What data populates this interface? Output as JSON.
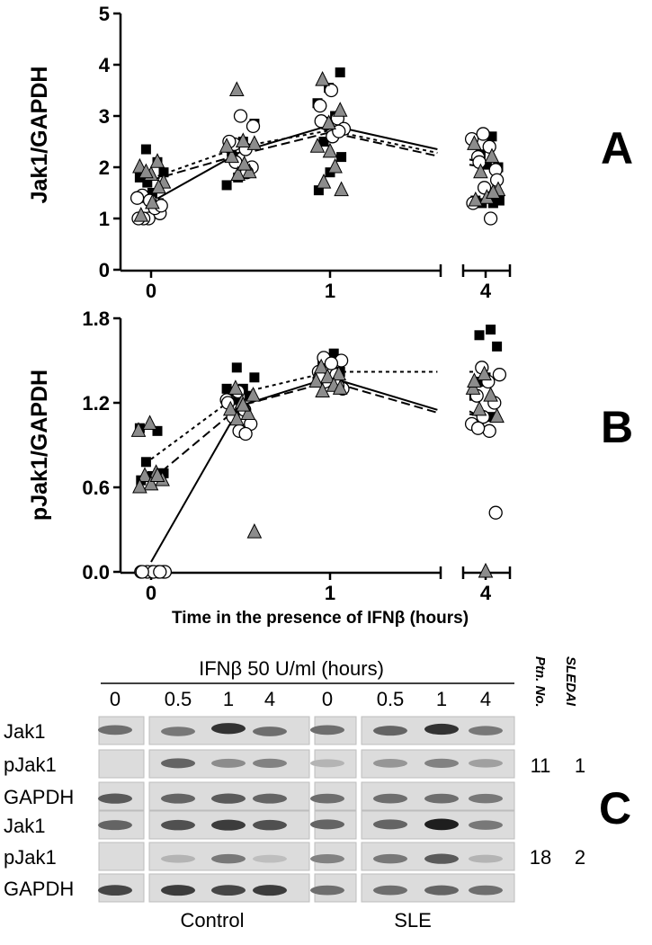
{
  "panels": {
    "A": "A",
    "B": "B",
    "C": "C"
  },
  "chart_data": [
    {
      "type": "scatter",
      "panel": "A",
      "title": "",
      "xlabel": "",
      "ylabel": "Jak1/GAPDH",
      "ylim": [
        0,
        5
      ],
      "yticks": [
        "0",
        "1",
        "2",
        "3",
        "4",
        "5"
      ],
      "xticks": [
        "0",
        "1",
        "4"
      ],
      "x_axis_break": "between 1 and 4",
      "series": [
        {
          "marker": "filled-square",
          "points": [
            {
              "x": 0,
              "y": 1.8
            },
            {
              "x": 0,
              "y": 2.1
            },
            {
              "x": 0,
              "y": 2.35
            },
            {
              "x": 0,
              "y": 1.9
            },
            {
              "x": 0,
              "y": 1.5
            },
            {
              "x": 0,
              "y": 1.4
            },
            {
              "x": 0,
              "y": 1.3
            },
            {
              "x": 0,
              "y": 1.7
            },
            {
              "x": 0.5,
              "y": 2.85
            },
            {
              "x": 0.5,
              "y": 2.5
            },
            {
              "x": 0.5,
              "y": 2.3
            },
            {
              "x": 0.5,
              "y": 2.0
            },
            {
              "x": 0.5,
              "y": 1.8
            },
            {
              "x": 0.5,
              "y": 1.65
            },
            {
              "x": 0.5,
              "y": 1.9
            },
            {
              "x": 0.5,
              "y": 2.2
            },
            {
              "x": 1,
              "y": 3.85
            },
            {
              "x": 1,
              "y": 3.55
            },
            {
              "x": 1,
              "y": 3.25
            },
            {
              "x": 1,
              "y": 3.0
            },
            {
              "x": 1,
              "y": 2.5
            },
            {
              "x": 1,
              "y": 2.2
            },
            {
              "x": 1,
              "y": 1.9
            },
            {
              "x": 1,
              "y": 1.55
            },
            {
              "x": 4,
              "y": 2.6
            },
            {
              "x": 4,
              "y": 2.25
            },
            {
              "x": 4,
              "y": 2.0
            },
            {
              "x": 4,
              "y": 2.05
            },
            {
              "x": 4,
              "y": 1.35
            },
            {
              "x": 4,
              "y": 1.3
            },
            {
              "x": 4,
              "y": 1.3
            },
            {
              "x": 4,
              "y": 1.35
            }
          ]
        },
        {
          "marker": "open-circle",
          "points": [
            {
              "x": 0,
              "y": 1.3
            },
            {
              "x": 0,
              "y": 1.45
            },
            {
              "x": 0,
              "y": 1.1
            },
            {
              "x": 0,
              "y": 1.0
            },
            {
              "x": 0,
              "y": 1.4
            },
            {
              "x": 0,
              "y": 1.2
            },
            {
              "x": 0,
              "y": 1.0
            },
            {
              "x": 0,
              "y": 1.25
            },
            {
              "x": 0,
              "y": 1.35
            },
            {
              "x": 0,
              "y": 1.0
            },
            {
              "x": 0.5,
              "y": 2.35
            },
            {
              "x": 0.5,
              "y": 2.45
            },
            {
              "x": 0.5,
              "y": 2.0
            },
            {
              "x": 0.5,
              "y": 3.0
            },
            {
              "x": 0.5,
              "y": 2.5
            },
            {
              "x": 0.5,
              "y": 1.9
            },
            {
              "x": 0.5,
              "y": 2.1
            },
            {
              "x": 0.5,
              "y": 2.8
            },
            {
              "x": 1,
              "y": 3.5
            },
            {
              "x": 1,
              "y": 3.2
            },
            {
              "x": 1,
              "y": 2.95
            },
            {
              "x": 1,
              "y": 2.85
            },
            {
              "x": 1,
              "y": 2.75
            },
            {
              "x": 1,
              "y": 2.6
            },
            {
              "x": 1,
              "y": 2.9
            },
            {
              "x": 1,
              "y": 2.7
            },
            {
              "x": 4,
              "y": 2.65
            },
            {
              "x": 4,
              "y": 2.55
            },
            {
              "x": 4,
              "y": 2.4
            },
            {
              "x": 4,
              "y": 2.2
            },
            {
              "x": 4,
              "y": 1.95
            },
            {
              "x": 4,
              "y": 1.6
            },
            {
              "x": 4,
              "y": 1.3
            },
            {
              "x": 4,
              "y": 1.0
            },
            {
              "x": 4,
              "y": 2.1
            },
            {
              "x": 4,
              "y": 1.75
            }
          ]
        },
        {
          "marker": "grey-triangle",
          "points": [
            {
              "x": 0,
              "y": 1.85
            },
            {
              "x": 0,
              "y": 2.0
            },
            {
              "x": 0,
              "y": 2.1
            },
            {
              "x": 0,
              "y": 1.9
            },
            {
              "x": 0,
              "y": 1.7
            },
            {
              "x": 0,
              "y": 1.3
            },
            {
              "x": 0,
              "y": 1.05
            },
            {
              "x": 0,
              "y": 1.6
            },
            {
              "x": 0.5,
              "y": 3.5
            },
            {
              "x": 0.5,
              "y": 2.45
            },
            {
              "x": 0.5,
              "y": 2.5
            },
            {
              "x": 0.5,
              "y": 2.2
            },
            {
              "x": 0.5,
              "y": 1.9
            },
            {
              "x": 0.5,
              "y": 1.85
            },
            {
              "x": 0.5,
              "y": 2.4
            },
            {
              "x": 0.5,
              "y": 2.05
            },
            {
              "x": 1,
              "y": 3.7
            },
            {
              "x": 1,
              "y": 3.1
            },
            {
              "x": 1,
              "y": 2.85
            },
            {
              "x": 1,
              "y": 2.4
            },
            {
              "x": 1,
              "y": 2.0
            },
            {
              "x": 1,
              "y": 1.7
            },
            {
              "x": 1,
              "y": 1.55
            },
            {
              "x": 1,
              "y": 2.3
            },
            {
              "x": 4,
              "y": 2.45
            },
            {
              "x": 4,
              "y": 2.2
            },
            {
              "x": 4,
              "y": 1.9
            },
            {
              "x": 4,
              "y": 1.55
            },
            {
              "x": 4,
              "y": 1.4
            },
            {
              "x": 4,
              "y": 1.35
            },
            {
              "x": 4,
              "y": 1.5
            }
          ]
        }
      ],
      "lines": [
        {
          "style": "solid",
          "points": [
            {
              "x": 0,
              "y": 1.32
            },
            {
              "x": 0.5,
              "y": 2.3
            },
            {
              "x": 1,
              "y": 2.82
            },
            {
              "x": 1.6,
              "y": 2.35
            }
          ]
        },
        {
          "style": "dashed",
          "points": [
            {
              "x": 0,
              "y": 1.75
            },
            {
              "x": 0.5,
              "y": 2.25
            },
            {
              "x": 1,
              "y": 2.68
            },
            {
              "x": 1.6,
              "y": 2.22
            }
          ]
        },
        {
          "style": "dotted",
          "points": [
            {
              "x": 0,
              "y": 1.78
            },
            {
              "x": 0.5,
              "y": 2.4
            },
            {
              "x": 1,
              "y": 2.72
            },
            {
              "x": 1.6,
              "y": 2.28
            }
          ]
        },
        {
          "style": "solid",
          "points": [
            {
              "x": 3.85,
              "y": 2.15
            },
            {
              "x": 4,
              "y": 2.08
            }
          ]
        },
        {
          "style": "dashed",
          "points": [
            {
              "x": 3.85,
              "y": 2.05
            },
            {
              "x": 4,
              "y": 2.0
            }
          ]
        }
      ]
    },
    {
      "type": "scatter",
      "panel": "B",
      "title": "",
      "xlabel": "Time in the presence of IFNβ (hours)",
      "ylabel": "pJak1/GAPDH",
      "ylim": [
        0,
        1.8
      ],
      "yticks": [
        "0.0",
        "0.6",
        "1.2",
        "1.8"
      ],
      "xticks": [
        "0",
        "1",
        "4"
      ],
      "x_axis_break": "between 1 and 4",
      "series": [
        {
          "marker": "filled-square",
          "points": [
            {
              "x": 0,
              "y": 1.02
            },
            {
              "x": 0,
              "y": 1.0
            },
            {
              "x": 0,
              "y": 0.78
            },
            {
              "x": 0,
              "y": 0.7
            },
            {
              "x": 0,
              "y": 0.68
            },
            {
              "x": 0,
              "y": 0.65
            },
            {
              "x": 0,
              "y": 0.7
            },
            {
              "x": 0.5,
              "y": 1.45
            },
            {
              "x": 0.5,
              "y": 1.38
            },
            {
              "x": 0.5,
              "y": 1.3
            },
            {
              "x": 0.5,
              "y": 1.28
            },
            {
              "x": 0.5,
              "y": 1.25
            },
            {
              "x": 0.5,
              "y": 1.22
            },
            {
              "x": 0.5,
              "y": 1.3
            },
            {
              "x": 1,
              "y": 1.55
            },
            {
              "x": 1,
              "y": 1.48
            },
            {
              "x": 1,
              "y": 1.42
            },
            {
              "x": 1,
              "y": 1.38
            },
            {
              "x": 1,
              "y": 1.35
            },
            {
              "x": 4,
              "y": 1.72
            },
            {
              "x": 4,
              "y": 1.68
            },
            {
              "x": 4,
              "y": 1.6
            },
            {
              "x": 4,
              "y": 1.38
            },
            {
              "x": 4,
              "y": 1.25
            },
            {
              "x": 4,
              "y": 1.1
            },
            {
              "x": 4,
              "y": 1.35
            }
          ]
        },
        {
          "marker": "open-circle",
          "points": [
            {
              "x": 0,
              "y": 0.0
            },
            {
              "x": 0,
              "y": 0.0
            },
            {
              "x": 0,
              "y": 0.0
            },
            {
              "x": 0,
              "y": 0.0
            },
            {
              "x": 0,
              "y": 0.0
            },
            {
              "x": 0,
              "y": 0.0
            },
            {
              "x": 0,
              "y": 0.0
            },
            {
              "x": 0,
              "y": 0.0
            },
            {
              "x": 0,
              "y": 0.0
            },
            {
              "x": 0.5,
              "y": 1.28
            },
            {
              "x": 0.5,
              "y": 1.22
            },
            {
              "x": 0.5,
              "y": 1.15
            },
            {
              "x": 0.5,
              "y": 1.1
            },
            {
              "x": 0.5,
              "y": 1.05
            },
            {
              "x": 0.5,
              "y": 1.0
            },
            {
              "x": 0.5,
              "y": 1.2
            },
            {
              "x": 0.5,
              "y": 0.98
            },
            {
              "x": 1,
              "y": 1.52
            },
            {
              "x": 1,
              "y": 1.5
            },
            {
              "x": 1,
              "y": 1.45
            },
            {
              "x": 1,
              "y": 1.42
            },
            {
              "x": 1,
              "y": 1.4
            },
            {
              "x": 1,
              "y": 1.35
            },
            {
              "x": 1,
              "y": 1.3
            },
            {
              "x": 1,
              "y": 1.48
            },
            {
              "x": 1,
              "y": 1.38
            },
            {
              "x": 1,
              "y": 1.32
            },
            {
              "x": 4,
              "y": 1.45
            },
            {
              "x": 4,
              "y": 1.4
            },
            {
              "x": 4,
              "y": 1.35
            },
            {
              "x": 4,
              "y": 1.25
            },
            {
              "x": 4,
              "y": 1.2
            },
            {
              "x": 4,
              "y": 1.1
            },
            {
              "x": 4,
              "y": 1.05
            },
            {
              "x": 4,
              "y": 1.0
            },
            {
              "x": 4,
              "y": 1.02
            },
            {
              "x": 4,
              "y": 0.42
            }
          ]
        },
        {
          "marker": "grey-triangle",
          "points": [
            {
              "x": 0,
              "y": 1.05
            },
            {
              "x": 0,
              "y": 1.0
            },
            {
              "x": 0,
              "y": 0.7
            },
            {
              "x": 0,
              "y": 0.68
            },
            {
              "x": 0,
              "y": 0.65
            },
            {
              "x": 0,
              "y": 0.62
            },
            {
              "x": 0,
              "y": 0.6
            },
            {
              "x": 0,
              "y": 0.68
            },
            {
              "x": 0.5,
              "y": 1.3
            },
            {
              "x": 0.5,
              "y": 1.25
            },
            {
              "x": 0.5,
              "y": 1.2
            },
            {
              "x": 0.5,
              "y": 1.15
            },
            {
              "x": 0.5,
              "y": 1.12
            },
            {
              "x": 0.5,
              "y": 1.08
            },
            {
              "x": 0.5,
              "y": 0.28
            },
            {
              "x": 0.5,
              "y": 1.18
            },
            {
              "x": 1,
              "y": 1.45
            },
            {
              "x": 1,
              "y": 1.4
            },
            {
              "x": 1,
              "y": 1.38
            },
            {
              "x": 1,
              "y": 1.35
            },
            {
              "x": 1,
              "y": 1.32
            },
            {
              "x": 1,
              "y": 1.28
            },
            {
              "x": 1,
              "y": 1.3
            },
            {
              "x": 4,
              "y": 1.4
            },
            {
              "x": 4,
              "y": 1.3
            },
            {
              "x": 4,
              "y": 1.25
            },
            {
              "x": 4,
              "y": 1.15
            },
            {
              "x": 4,
              "y": 1.1
            },
            {
              "x": 4,
              "y": 0.0
            },
            {
              "x": 4,
              "y": 1.35
            }
          ]
        }
      ],
      "lines": [
        {
          "style": "solid",
          "points": [
            {
              "x": 0,
              "y": 0.07
            },
            {
              "x": 0.5,
              "y": 1.18
            },
            {
              "x": 1,
              "y": 1.38
            },
            {
              "x": 1.6,
              "y": 1.15
            }
          ]
        },
        {
          "style": "dashed",
          "points": [
            {
              "x": 0,
              "y": 0.65
            },
            {
              "x": 0.5,
              "y": 1.18
            },
            {
              "x": 1,
              "y": 1.35
            },
            {
              "x": 1.6,
              "y": 1.13
            }
          ]
        },
        {
          "style": "dotted",
          "points": [
            {
              "x": 0,
              "y": 0.8
            },
            {
              "x": 0.5,
              "y": 1.27
            },
            {
              "x": 1,
              "y": 1.42
            },
            {
              "x": 1.6,
              "y": 1.42
            }
          ]
        },
        {
          "style": "dotted",
          "points": [
            {
              "x": 3.85,
              "y": 1.42
            },
            {
              "x": 4,
              "y": 1.42
            }
          ]
        },
        {
          "style": "solid",
          "points": [
            {
              "x": 3.85,
              "y": 1.14
            },
            {
              "x": 4,
              "y": 1.08
            }
          ]
        },
        {
          "style": "dashed",
          "points": [
            {
              "x": 3.85,
              "y": 1.12
            },
            {
              "x": 4,
              "y": 1.1
            }
          ]
        }
      ]
    }
  ],
  "blot": {
    "header": "IFNβ 50 U/ml (hours)",
    "timepoints": [
      "0",
      "0.5",
      "1",
      "4",
      "0",
      "0.5",
      "1",
      "4"
    ],
    "col_ptn": "Ptn. No.",
    "col_sledai": "SLEDAI",
    "row_labels": [
      "Jak1",
      "pJak1",
      "GAPDH",
      "Jak1",
      "pJak1",
      "GAPDH"
    ],
    "patients": [
      {
        "ptn": "11",
        "sledai": "1"
      },
      {
        "ptn": "18",
        "sledai": "2"
      }
    ],
    "groups": [
      "Control",
      "SLE"
    ]
  }
}
